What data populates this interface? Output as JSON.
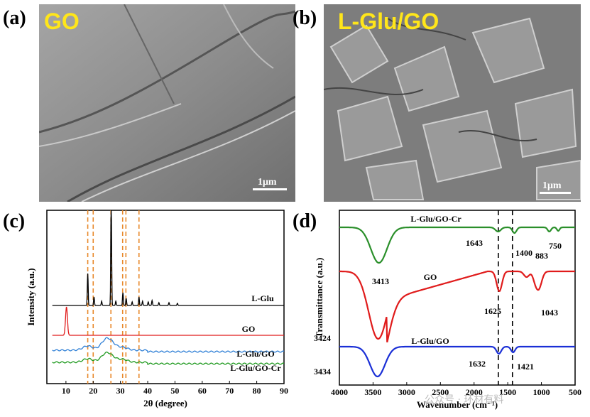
{
  "panels": {
    "a": {
      "label": "(a)",
      "tag": "GO",
      "scale": "1μm"
    },
    "b": {
      "label": "(b)",
      "tag": "L-Glu/GO",
      "scale": "1μm"
    },
    "c": {
      "label": "(c)"
    },
    "d": {
      "label": "(d)"
    }
  },
  "watermark": "公众号 · 环材有料",
  "chart_data": [
    {
      "type": "line",
      "panel": "c",
      "xlabel": "2θ (degree)",
      "ylabel": "Intensity (a.u.)",
      "xlim": [
        3,
        90
      ],
      "xticks": [
        10,
        20,
        30,
        40,
        50,
        60,
        70,
        80,
        90
      ],
      "yticks": "none",
      "dashed_lines_x": [
        18,
        20,
        26.5,
        30.8,
        32,
        36.8
      ],
      "series": [
        {
          "name": "L-Glu",
          "color": "#000000",
          "peaks": [
            [
              18.0,
              45
            ],
            [
              20.3,
              12
            ],
            [
              23.1,
              6
            ],
            [
              26.6,
              150
            ],
            [
              28.3,
              6
            ],
            [
              30.9,
              18
            ],
            [
              32.1,
              10
            ],
            [
              34.3,
              5
            ],
            [
              36.8,
              12
            ],
            [
              38.1,
              6
            ],
            [
              40.2,
              5
            ],
            [
              41.6,
              7
            ],
            [
              44.1,
              4
            ],
            [
              47.8,
              4
            ],
            [
              50.9,
              3
            ]
          ]
        },
        {
          "name": "GO",
          "color": "#e01b1b",
          "peaks": [
            [
              10.2,
              40
            ]
          ]
        },
        {
          "name": "L-Glu/GO",
          "color": "#2e7fd6",
          "peaks": [
            [
              18.0,
              6
            ],
            [
              24.5,
              12
            ],
            [
              26.6,
              8
            ],
            [
              30.9,
              4
            ]
          ]
        },
        {
          "name": "L-Glu/GO-Cr",
          "color": "#1f9a1f",
          "peaks": [
            [
              18.0,
              5
            ],
            [
              24.5,
              10
            ],
            [
              26.6,
              6
            ],
            [
              30.9,
              4
            ]
          ]
        }
      ]
    },
    {
      "type": "line",
      "panel": "d",
      "xlabel": "Wavenumber (cm⁻¹)",
      "ylabel": "Transmittance (a.u.)",
      "xlim": [
        4000,
        500
      ],
      "xticks": [
        4000,
        3500,
        3000,
        2500,
        2000,
        1500,
        1000,
        500
      ],
      "dashed_lines_x": [
        1640,
        1430
      ],
      "series": [
        {
          "name": "L-Glu/GO-Cr",
          "color": "#2a8f2a",
          "label_x": 3300,
          "bands": [
            [
              3413,
              50
            ],
            [
              1643,
              6
            ],
            [
              1400,
              8
            ],
            [
              883,
              6
            ],
            [
              750,
              5
            ]
          ]
        },
        {
          "name": "GO",
          "color": "#e01b1b",
          "label_x": 2850,
          "bands": [
            [
              3424,
              95
            ],
            [
              1625,
              28
            ],
            [
              1043,
              25
            ]
          ]
        },
        {
          "name": "L-Glu/GO",
          "color": "#1a2fd6",
          "label_x": 2600,
          "bands": [
            [
              3434,
              42
            ],
            [
              1632,
              10
            ],
            [
              1421,
              8
            ]
          ]
        }
      ],
      "annotations": [
        "3413",
        "1643",
        "1400",
        "883",
        "750",
        "3424",
        "1625",
        "1043",
        "3434",
        "1632",
        "1421"
      ]
    }
  ]
}
